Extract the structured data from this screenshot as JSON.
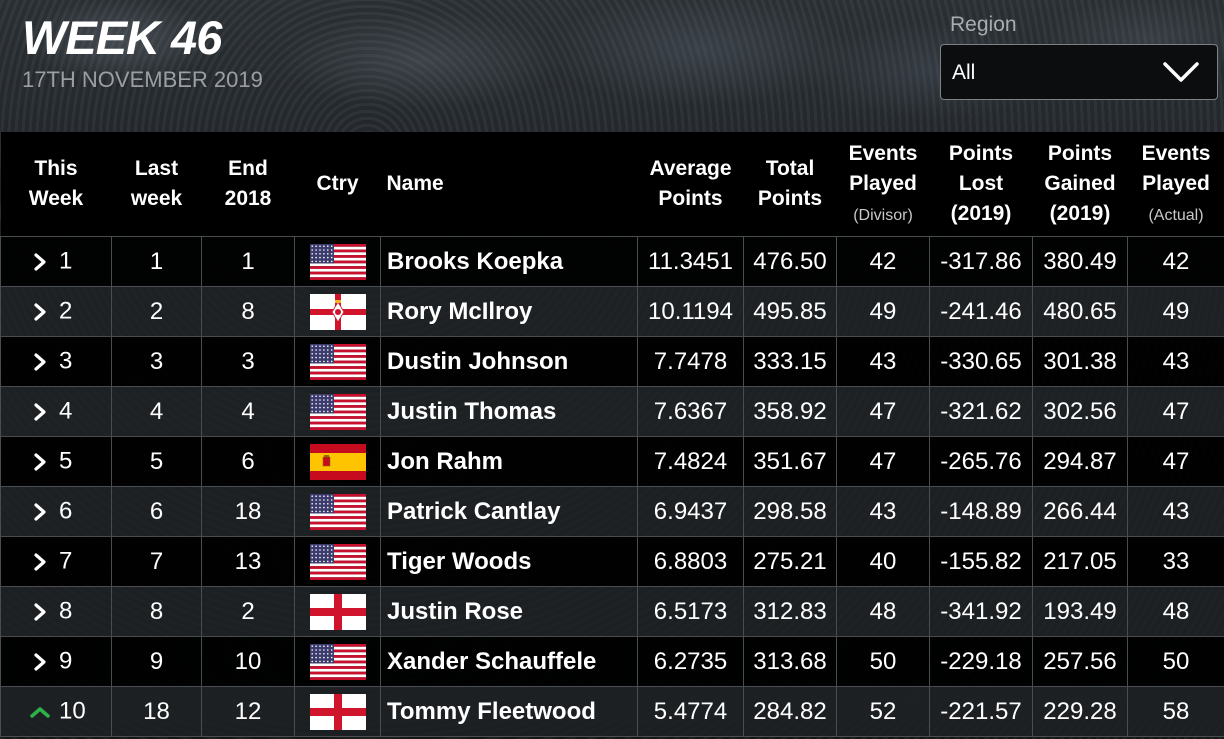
{
  "header": {
    "title": "WEEK 46",
    "date": "17TH NOVEMBER 2019"
  },
  "region": {
    "label": "Region",
    "value": "All",
    "icon": "chevron-down-icon"
  },
  "columns": {
    "this_week": [
      "This",
      "Week"
    ],
    "last_week": [
      "Last",
      "week"
    ],
    "end_2018": [
      "End",
      "2018"
    ],
    "ctry": "Ctry",
    "name": "Name",
    "avg_points": [
      "Average",
      "Points"
    ],
    "total_points": [
      "Total",
      "Points"
    ],
    "events_divisor": [
      "Events",
      "Played",
      "(Divisor)"
    ],
    "points_lost": [
      "Points",
      "Lost",
      "(2019)"
    ],
    "points_gained": [
      "Points",
      "Gained",
      "(2019)"
    ],
    "events_actual": [
      "Events",
      "Played",
      "(Actual)"
    ]
  },
  "rows": [
    {
      "movement": "same",
      "this_week": "1",
      "last_week": "1",
      "end_2018": "1",
      "country": "usa",
      "name": "Brooks Koepka",
      "avg": "11.3451",
      "total": "476.50",
      "events_divisor": "42",
      "lost": "-317.86",
      "gained": "380.49",
      "events_actual": "42"
    },
    {
      "movement": "same",
      "this_week": "2",
      "last_week": "2",
      "end_2018": "8",
      "country": "northern-ireland",
      "name": "Rory McIlroy",
      "avg": "10.1194",
      "total": "495.85",
      "events_divisor": "49",
      "lost": "-241.46",
      "gained": "480.65",
      "events_actual": "49"
    },
    {
      "movement": "same",
      "this_week": "3",
      "last_week": "3",
      "end_2018": "3",
      "country": "usa",
      "name": "Dustin Johnson",
      "avg": "7.7478",
      "total": "333.15",
      "events_divisor": "43",
      "lost": "-330.65",
      "gained": "301.38",
      "events_actual": "43"
    },
    {
      "movement": "same",
      "this_week": "4",
      "last_week": "4",
      "end_2018": "4",
      "country": "usa",
      "name": "Justin Thomas",
      "avg": "7.6367",
      "total": "358.92",
      "events_divisor": "47",
      "lost": "-321.62",
      "gained": "302.56",
      "events_actual": "47"
    },
    {
      "movement": "same",
      "this_week": "5",
      "last_week": "5",
      "end_2018": "6",
      "country": "spain",
      "name": "Jon Rahm",
      "avg": "7.4824",
      "total": "351.67",
      "events_divisor": "47",
      "lost": "-265.76",
      "gained": "294.87",
      "events_actual": "47"
    },
    {
      "movement": "same",
      "this_week": "6",
      "last_week": "6",
      "end_2018": "18",
      "country": "usa",
      "name": "Patrick Cantlay",
      "avg": "6.9437",
      "total": "298.58",
      "events_divisor": "43",
      "lost": "-148.89",
      "gained": "266.44",
      "events_actual": "43"
    },
    {
      "movement": "same",
      "this_week": "7",
      "last_week": "7",
      "end_2018": "13",
      "country": "usa",
      "name": "Tiger Woods",
      "avg": "6.8803",
      "total": "275.21",
      "events_divisor": "40",
      "lost": "-155.82",
      "gained": "217.05",
      "events_actual": "33"
    },
    {
      "movement": "same",
      "this_week": "8",
      "last_week": "8",
      "end_2018": "2",
      "country": "england",
      "name": "Justin Rose",
      "avg": "6.5173",
      "total": "312.83",
      "events_divisor": "48",
      "lost": "-341.92",
      "gained": "193.49",
      "events_actual": "48"
    },
    {
      "movement": "same",
      "this_week": "9",
      "last_week": "9",
      "end_2018": "10",
      "country": "usa",
      "name": "Xander Schauffele",
      "avg": "6.2735",
      "total": "313.68",
      "events_divisor": "50",
      "lost": "-229.18",
      "gained": "257.56",
      "events_actual": "50"
    },
    {
      "movement": "up",
      "this_week": "10",
      "last_week": "18",
      "end_2018": "12",
      "country": "england",
      "name": "Tommy Fleetwood",
      "avg": "5.4774",
      "total": "284.82",
      "events_divisor": "52",
      "lost": "-221.57",
      "gained": "229.28",
      "events_actual": "58"
    }
  ],
  "colors": {
    "movement_up": "#2bb34a",
    "row_border": "#4a4d50",
    "header_bg": "#000000"
  }
}
